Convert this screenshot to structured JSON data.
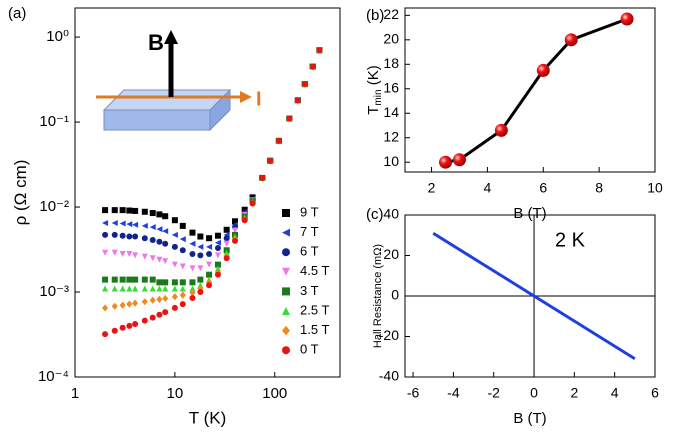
{
  "chart_data": [
    {
      "type": "scatter",
      "panel_label": "(a)",
      "xlabel": "T (K)",
      "ylabel": "ρ (Ω cm)",
      "xlog": true,
      "ylog": true,
      "xlim": [
        1,
        450
      ],
      "ylim": [
        0.0001,
        2.2
      ],
      "xticks": [
        1,
        10,
        100
      ],
      "yticks": [
        {
          "value": 0.0001,
          "label": "10⁻⁴"
        },
        {
          "value": 0.001,
          "label": "10⁻³"
        },
        {
          "value": 0.01,
          "label": "10⁻²"
        },
        {
          "value": 0.1,
          "label": "10⁻¹"
        },
        {
          "value": 1,
          "label": "10⁰"
        }
      ],
      "annotations": [
        "B",
        "I"
      ],
      "x": [
        2,
        2.5,
        3,
        3.5,
        4,
        5,
        6,
        7,
        8,
        10,
        12,
        15,
        18,
        22,
        27,
        33,
        40,
        50,
        60,
        75,
        90,
        110,
        140,
        170,
        200,
        240,
        280
      ],
      "series": [
        {
          "name": "9 T",
          "color": "#000000",
          "marker": "square",
          "values": [
            0.0092,
            0.0092,
            0.0092,
            0.0091,
            0.009,
            0.0088,
            0.0085,
            0.0082,
            0.0078,
            0.007,
            0.006,
            0.005,
            0.0045,
            0.0043,
            0.0046,
            0.0054,
            0.0068,
            0.0093,
            0.013,
            0.022,
            0.035,
            0.06,
            0.11,
            0.18,
            0.28,
            0.45,
            0.7
          ]
        },
        {
          "name": "7 T",
          "color": "#1f3fe0",
          "marker": "triangle-left",
          "values": [
            0.0065,
            0.0065,
            0.0064,
            0.0063,
            0.0062,
            0.006,
            0.0058,
            0.0055,
            0.0052,
            0.0047,
            0.0042,
            0.0037,
            0.0034,
            0.0034,
            0.0038,
            0.0047,
            0.0062,
            0.0088,
            0.0125,
            0.022,
            0.035,
            0.06,
            0.11,
            0.18,
            0.28,
            0.45,
            0.7
          ]
        },
        {
          "name": "6 T",
          "color": "#12238f",
          "marker": "circle",
          "values": [
            0.0047,
            0.0047,
            0.0046,
            0.0045,
            0.0045,
            0.0043,
            0.0041,
            0.0039,
            0.0037,
            0.0034,
            0.0031,
            0.0028,
            0.0027,
            0.0028,
            0.0033,
            0.0043,
            0.0058,
            0.0085,
            0.0122,
            0.022,
            0.035,
            0.06,
            0.11,
            0.18,
            0.28,
            0.45,
            0.7
          ]
        },
        {
          "name": "4.5 T",
          "color": "#ee77ee",
          "marker": "triangle-down",
          "values": [
            0.0029,
            0.0029,
            0.0028,
            0.0028,
            0.0027,
            0.0026,
            0.0025,
            0.0024,
            0.0023,
            0.0021,
            0.002,
            0.0019,
            0.0019,
            0.0021,
            0.0027,
            0.0037,
            0.0053,
            0.0081,
            0.012,
            0.022,
            0.035,
            0.06,
            0.11,
            0.18,
            0.28,
            0.45,
            0.7
          ]
        },
        {
          "name": "3 T",
          "color": "#1a7a1a",
          "marker": "square",
          "values": [
            0.0014,
            0.0014,
            0.0014,
            0.0014,
            0.0014,
            0.0014,
            0.0014,
            0.0013,
            0.0013,
            0.0013,
            0.0013,
            0.0013,
            0.0014,
            0.0016,
            0.0021,
            0.0031,
            0.0047,
            0.0077,
            0.0117,
            0.022,
            0.035,
            0.06,
            0.11,
            0.18,
            0.28,
            0.45,
            0.7
          ]
        },
        {
          "name": "2.5 T",
          "color": "#33dd33",
          "marker": "triangle-up",
          "values": [
            0.0011,
            0.0011,
            0.0011,
            0.0011,
            0.0011,
            0.0011,
            0.0011,
            0.0011,
            0.0011,
            0.0011,
            0.0011,
            0.0011,
            0.0012,
            0.0014,
            0.0019,
            0.0029,
            0.0045,
            0.0075,
            0.0115,
            0.022,
            0.035,
            0.06,
            0.11,
            0.18,
            0.28,
            0.45,
            0.7
          ]
        },
        {
          "name": "1.5 T",
          "color": "#f08a1c",
          "marker": "diamond",
          "values": [
            0.00065,
            0.00068,
            0.0007,
            0.00072,
            0.00074,
            0.00077,
            0.0008,
            0.00082,
            0.00084,
            0.00088,
            0.00092,
            0.00098,
            0.0011,
            0.0013,
            0.0017,
            0.0026,
            0.0042,
            0.0072,
            0.0112,
            0.022,
            0.035,
            0.06,
            0.11,
            0.18,
            0.28,
            0.45,
            0.7
          ]
        },
        {
          "name": "0 T",
          "color": "#ee1111",
          "marker": "circle",
          "values": [
            0.00032,
            0.00035,
            0.00038,
            0.0004,
            0.00042,
            0.00046,
            0.0005,
            0.00054,
            0.00058,
            0.00065,
            0.00072,
            0.00085,
            0.001,
            0.0012,
            0.0016,
            0.0025,
            0.004,
            0.007,
            0.011,
            0.022,
            0.035,
            0.06,
            0.11,
            0.18,
            0.28,
            0.45,
            0.7
          ]
        }
      ]
    },
    {
      "type": "line",
      "panel_label": "(b)",
      "xlabel": "B (T)",
      "ylabel": "T",
      "ylabel_sub": "min",
      "ylabel_unit": " (K)",
      "xlim": [
        1.05,
        10
      ],
      "ylim": [
        9.2,
        22.6
      ],
      "xticks": [
        2,
        4,
        6,
        8,
        10
      ],
      "yticks": [
        10,
        12,
        14,
        16,
        18,
        20,
        22
      ],
      "x": [
        2.5,
        3,
        4.5,
        6,
        7,
        9
      ],
      "series": [
        {
          "color": "#ee1111",
          "line_color": "#000000",
          "marker": "sphere",
          "values": [
            10,
            10.2,
            12.6,
            17.5,
            20,
            21.7
          ]
        }
      ]
    },
    {
      "type": "line",
      "panel_label": "(c)",
      "xlabel": "B (T)",
      "ylabel": "Hall Resistance (mΩ)",
      "annotations": [
        "2 K"
      ],
      "zero_lines": true,
      "xlim": [
        -6.4,
        6
      ],
      "ylim": [
        -40,
        40
      ],
      "xticks": [
        -6,
        -4,
        -2,
        0,
        2,
        4,
        6
      ],
      "yticks": [
        -40,
        -20,
        0,
        20,
        40
      ],
      "x": [
        -5,
        -2.5,
        0,
        2.5,
        5
      ],
      "series": [
        {
          "color": "#1f3fe0",
          "line_color": "#1f3fe0",
          "marker": "none",
          "values": [
            31,
            15.5,
            0,
            -15.5,
            -31
          ]
        }
      ]
    }
  ]
}
